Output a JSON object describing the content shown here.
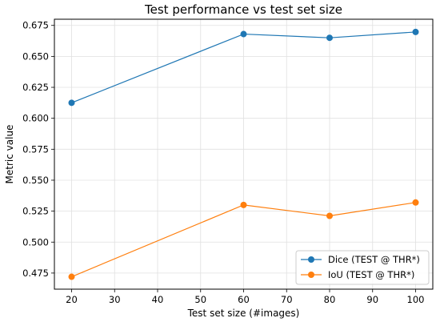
{
  "chart_data": {
    "type": "line",
    "title": "Test performance vs test set size",
    "xlabel": "Test set size (#images)",
    "ylabel": "Metric value",
    "xlim": [
      16,
      104
    ],
    "ylim": [
      0.462,
      0.68
    ],
    "xticks": [
      20,
      30,
      40,
      50,
      60,
      70,
      80,
      90,
      100
    ],
    "yticks": [
      0.475,
      0.5,
      0.525,
      0.55,
      0.575,
      0.6,
      0.625,
      0.65,
      0.675
    ],
    "grid": true,
    "legend_position": "lower-right",
    "x": [
      20,
      60,
      80,
      100
    ],
    "series": [
      {
        "name": "Dice (TEST @ THR*)",
        "color": "#1f77b4",
        "marker": "circle",
        "values": [
          0.6125,
          0.668,
          0.665,
          0.6697
        ]
      },
      {
        "name": "IoU (TEST @ THR*)",
        "color": "#ff7f0e",
        "marker": "circle",
        "values": [
          0.472,
          0.53,
          0.5212,
          0.532
        ]
      }
    ]
  }
}
